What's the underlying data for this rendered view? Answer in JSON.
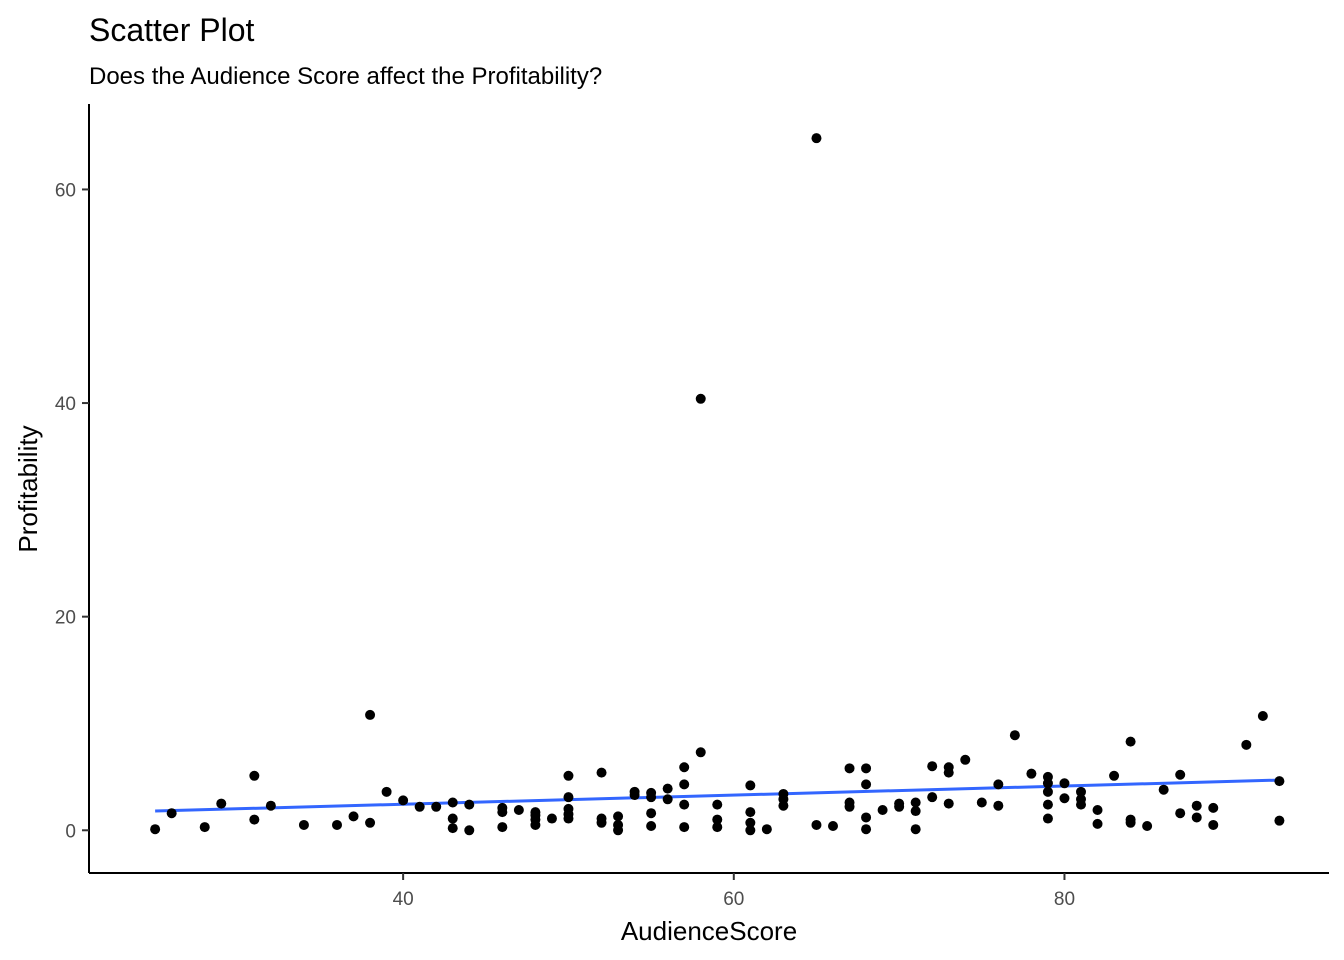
{
  "chart_data": {
    "type": "scatter",
    "title": "Scatter Plot",
    "subtitle": "Does the Audience Score affect the Profitability?",
    "xlabel": "AudienceScore",
    "ylabel": "Profitability",
    "xlim": [
      21,
      96
    ],
    "ylim": [
      -4,
      68
    ],
    "x_ticks": [
      40,
      60,
      80
    ],
    "y_ticks": [
      0,
      20,
      40,
      60
    ],
    "grid": false,
    "point_color": "#000000",
    "trend_color": "#3366ff",
    "trend_line": {
      "x": [
        25,
        93
      ],
      "y": [
        1.8,
        4.7
      ]
    },
    "points": [
      {
        "x": 25,
        "y": 0.1
      },
      {
        "x": 26,
        "y": 1.6
      },
      {
        "x": 28,
        "y": 0.3
      },
      {
        "x": 29,
        "y": 2.5
      },
      {
        "x": 31,
        "y": 5.1
      },
      {
        "x": 31,
        "y": 1.0
      },
      {
        "x": 32,
        "y": 2.3
      },
      {
        "x": 34,
        "y": 0.5
      },
      {
        "x": 36,
        "y": 0.5
      },
      {
        "x": 37,
        "y": 1.3
      },
      {
        "x": 38,
        "y": 10.8
      },
      {
        "x": 38,
        "y": 0.7
      },
      {
        "x": 39,
        "y": 3.6
      },
      {
        "x": 40,
        "y": 2.8
      },
      {
        "x": 41,
        "y": 2.2
      },
      {
        "x": 42,
        "y": 2.2
      },
      {
        "x": 43,
        "y": 2.6
      },
      {
        "x": 43,
        "y": 1.1
      },
      {
        "x": 43,
        "y": 0.2
      },
      {
        "x": 44,
        "y": 2.4
      },
      {
        "x": 44,
        "y": 0.0
      },
      {
        "x": 46,
        "y": 2.1
      },
      {
        "x": 46,
        "y": 1.7
      },
      {
        "x": 46,
        "y": 0.3
      },
      {
        "x": 47,
        "y": 1.9
      },
      {
        "x": 48,
        "y": 1.7
      },
      {
        "x": 48,
        "y": 1.4
      },
      {
        "x": 48,
        "y": 1.0
      },
      {
        "x": 48,
        "y": 0.5
      },
      {
        "x": 49,
        "y": 1.1
      },
      {
        "x": 50,
        "y": 5.1
      },
      {
        "x": 50,
        "y": 3.1
      },
      {
        "x": 50,
        "y": 2.0
      },
      {
        "x": 50,
        "y": 1.5
      },
      {
        "x": 50,
        "y": 1.1
      },
      {
        "x": 52,
        "y": 5.4
      },
      {
        "x": 52,
        "y": 1.1
      },
      {
        "x": 52,
        "y": 0.7
      },
      {
        "x": 53,
        "y": 1.3
      },
      {
        "x": 53,
        "y": 0.5
      },
      {
        "x": 53,
        "y": 0.0
      },
      {
        "x": 54,
        "y": 3.6
      },
      {
        "x": 54,
        "y": 3.3
      },
      {
        "x": 55,
        "y": 3.5
      },
      {
        "x": 55,
        "y": 3.1
      },
      {
        "x": 55,
        "y": 1.6
      },
      {
        "x": 55,
        "y": 0.4
      },
      {
        "x": 56,
        "y": 3.9
      },
      {
        "x": 56,
        "y": 2.9
      },
      {
        "x": 57,
        "y": 5.9
      },
      {
        "x": 57,
        "y": 4.3
      },
      {
        "x": 57,
        "y": 2.4
      },
      {
        "x": 57,
        "y": 0.3
      },
      {
        "x": 58,
        "y": 40.4
      },
      {
        "x": 58,
        "y": 7.3
      },
      {
        "x": 59,
        "y": 2.4
      },
      {
        "x": 59,
        "y": 1.0
      },
      {
        "x": 59,
        "y": 0.3
      },
      {
        "x": 61,
        "y": 4.2
      },
      {
        "x": 61,
        "y": 1.7
      },
      {
        "x": 61,
        "y": 0.7
      },
      {
        "x": 61,
        "y": 0.0
      },
      {
        "x": 62,
        "y": 0.1
      },
      {
        "x": 63,
        "y": 3.4
      },
      {
        "x": 63,
        "y": 2.9
      },
      {
        "x": 63,
        "y": 2.3
      },
      {
        "x": 65,
        "y": 64.8
      },
      {
        "x": 65,
        "y": 0.5
      },
      {
        "x": 66,
        "y": 0.4
      },
      {
        "x": 67,
        "y": 5.8
      },
      {
        "x": 67,
        "y": 2.6
      },
      {
        "x": 67,
        "y": 2.2
      },
      {
        "x": 68,
        "y": 5.8
      },
      {
        "x": 68,
        "y": 4.3
      },
      {
        "x": 68,
        "y": 1.2
      },
      {
        "x": 68,
        "y": 0.1
      },
      {
        "x": 69,
        "y": 1.9
      },
      {
        "x": 70,
        "y": 2.5
      },
      {
        "x": 70,
        "y": 2.2
      },
      {
        "x": 71,
        "y": 2.6
      },
      {
        "x": 71,
        "y": 1.8
      },
      {
        "x": 71,
        "y": 0.1
      },
      {
        "x": 72,
        "y": 6.0
      },
      {
        "x": 72,
        "y": 3.1
      },
      {
        "x": 73,
        "y": 5.9
      },
      {
        "x": 73,
        "y": 5.4
      },
      {
        "x": 73,
        "y": 2.5
      },
      {
        "x": 74,
        "y": 6.6
      },
      {
        "x": 75,
        "y": 2.6
      },
      {
        "x": 76,
        "y": 4.3
      },
      {
        "x": 76,
        "y": 2.3
      },
      {
        "x": 77,
        "y": 8.9
      },
      {
        "x": 78,
        "y": 5.3
      },
      {
        "x": 79,
        "y": 5.0
      },
      {
        "x": 79,
        "y": 4.4
      },
      {
        "x": 79,
        "y": 3.6
      },
      {
        "x": 79,
        "y": 2.4
      },
      {
        "x": 79,
        "y": 1.1
      },
      {
        "x": 80,
        "y": 4.4
      },
      {
        "x": 80,
        "y": 3.0
      },
      {
        "x": 81,
        "y": 3.6
      },
      {
        "x": 81,
        "y": 2.9
      },
      {
        "x": 81,
        "y": 2.4
      },
      {
        "x": 82,
        "y": 1.9
      },
      {
        "x": 82,
        "y": 0.6
      },
      {
        "x": 83,
        "y": 5.1
      },
      {
        "x": 84,
        "y": 8.3
      },
      {
        "x": 84,
        "y": 1.0
      },
      {
        "x": 84,
        "y": 0.7
      },
      {
        "x": 85,
        "y": 0.4
      },
      {
        "x": 86,
        "y": 3.8
      },
      {
        "x": 87,
        "y": 5.2
      },
      {
        "x": 87,
        "y": 1.6
      },
      {
        "x": 88,
        "y": 2.3
      },
      {
        "x": 88,
        "y": 1.2
      },
      {
        "x": 89,
        "y": 2.1
      },
      {
        "x": 89,
        "y": 0.5
      },
      {
        "x": 91,
        "y": 8.0
      },
      {
        "x": 92,
        "y": 10.7
      },
      {
        "x": 93,
        "y": 4.6
      },
      {
        "x": 93,
        "y": 0.9
      }
    ]
  }
}
